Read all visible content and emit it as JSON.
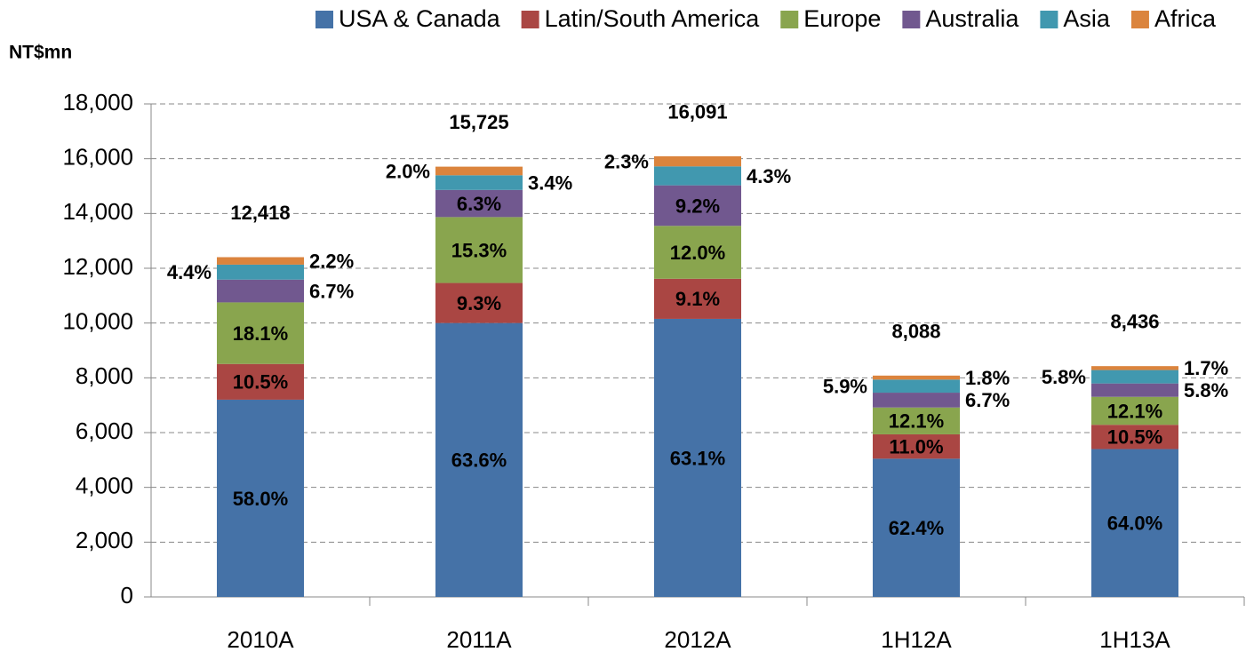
{
  "chart_data": {
    "type": "stacked_bar",
    "y_axis_label": "NT$mn",
    "categories": [
      "2010A",
      "2011A",
      "2012A",
      "1H12A",
      "1H13A"
    ],
    "series": [
      {
        "name": "USA & Canada",
        "color": "#4572a7",
        "values": [
          7202,
          10001,
          10153,
          5047,
          5399
        ],
        "share_labels": [
          "58.0%",
          "63.6%",
          "63.1%",
          "62.4%",
          "64.0%"
        ]
      },
      {
        "name": "Latin/South America",
        "color": "#aa4643",
        "values": [
          1304,
          1462,
          1464,
          890,
          886
        ],
        "share_labels": [
          "10.5%",
          "9.3%",
          "9.1%",
          "11.0%",
          "10.5%"
        ]
      },
      {
        "name": "Europe",
        "color": "#89a54e",
        "values": [
          2248,
          2406,
          1931,
          979,
          1021
        ],
        "share_labels": [
          "18.1%",
          "15.3%",
          "12.0%",
          "12.1%",
          "12.1%"
        ]
      },
      {
        "name": "Australia",
        "color": "#71588f",
        "values": [
          832,
          991,
          1480,
          542,
          489
        ],
        "share_labels": [
          "6.7%",
          "6.3%",
          "9.2%",
          "6.7%",
          "5.8%"
        ]
      },
      {
        "name": "Asia",
        "color": "#4198af",
        "values": [
          546,
          535,
          692,
          477,
          489
        ],
        "share_labels": [
          "4.4%",
          "3.4%",
          "4.3%",
          "5.9%",
          "5.8%"
        ]
      },
      {
        "name": "Africa",
        "color": "#db843d",
        "values": [
          273,
          315,
          370,
          146,
          143
        ],
        "share_labels": [
          "2.2%",
          "2.0%",
          "2.3%",
          "1.8%",
          "1.7%"
        ]
      }
    ],
    "totals": [
      12418,
      15725,
      16091,
      8088,
      8436
    ],
    "total_labels": [
      "12,418",
      "15,725",
      "16,091",
      "8,088",
      "8,436"
    ],
    "ylim": [
      0,
      18000
    ],
    "yticks": [
      0,
      {
        "value": 2000,
        "label": "2,000"
      },
      {
        "value": 4000,
        "label": "4,000"
      },
      {
        "value": 6000,
        "label": "6,000"
      },
      {
        "value": 8000,
        "label": "8,000"
      },
      {
        "value": 10000,
        "label": "10,000"
      },
      {
        "value": 12000,
        "label": "12,000"
      },
      {
        "value": 14000,
        "label": "14,000"
      },
      {
        "value": 16000,
        "label": "16,000"
      },
      {
        "value": 18000,
        "label": "18,000"
      }
    ],
    "grid": true
  }
}
